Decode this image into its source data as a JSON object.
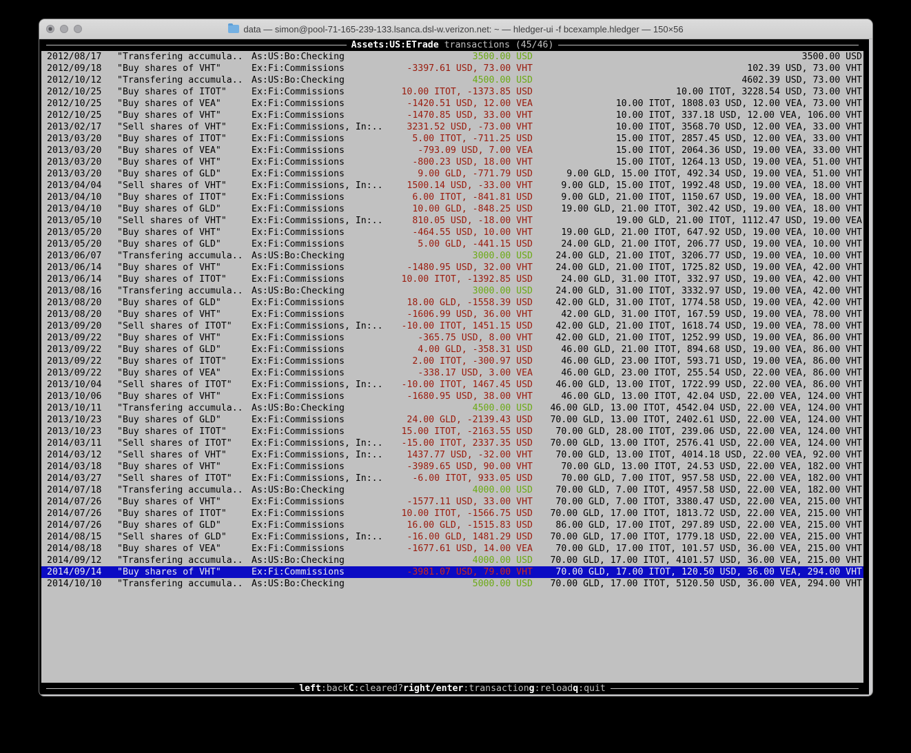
{
  "window": {
    "title": "data — simon@pool-71-165-239-133.lsanca.dsl-w.verizon.net: ~ — hledger-ui -f bcexample.hledger — 150×56"
  },
  "header": {
    "account": "Assets:US:ETrade",
    "mode_and_position": "transactions (45/46)"
  },
  "footer": {
    "hints": [
      {
        "key": "left",
        "desc": ":back"
      },
      {
        "key": "C",
        "desc": ":cleared?"
      },
      {
        "key": "right/enter",
        "desc": ":transaction"
      },
      {
        "key": "g",
        "desc": ":reload"
      },
      {
        "key": "q",
        "desc": ":quit"
      }
    ]
  },
  "colors": {
    "terminal_bg": "#c1c1c1",
    "bar_bg": "#000000",
    "inflow_green": "#6caa15",
    "outflow_red": "#9a1a0c",
    "selected_bg": "#0b0bc4",
    "selected_red": "#d02818"
  },
  "transactions": [
    {
      "date": "2012/08/17",
      "desc": "\"Transfering accumula..",
      "acct": "As:US:Bo:Checking",
      "change": "3500.00 USD",
      "change_type": "in",
      "bal": "3500.00 USD"
    },
    {
      "date": "2012/09/18",
      "desc": "\"Buy shares of VHT\"",
      "acct": "Ex:Fi:Commissions",
      "change": "-3397.61 USD, 73.00 VHT",
      "change_type": "out",
      "bal": "102.39 USD, 73.00 VHT"
    },
    {
      "date": "2012/10/12",
      "desc": "\"Transfering accumula..",
      "acct": "As:US:Bo:Checking",
      "change": "4500.00 USD",
      "change_type": "in",
      "bal": "4602.39 USD, 73.00 VHT"
    },
    {
      "date": "2012/10/25",
      "desc": "\"Buy shares of ITOT\"",
      "acct": "Ex:Fi:Commissions",
      "change": "10.00 ITOT, -1373.85 USD",
      "change_type": "out",
      "bal": "10.00 ITOT, 3228.54 USD, 73.00 VHT"
    },
    {
      "date": "2012/10/25",
      "desc": "\"Buy shares of VEA\"",
      "acct": "Ex:Fi:Commissions",
      "change": "-1420.51 USD, 12.00 VEA",
      "change_type": "out",
      "bal": "10.00 ITOT, 1808.03 USD, 12.00 VEA, 73.00 VHT"
    },
    {
      "date": "2012/10/25",
      "desc": "\"Buy shares of VHT\"",
      "acct": "Ex:Fi:Commissions",
      "change": "-1470.85 USD, 33.00 VHT",
      "change_type": "out",
      "bal": "10.00 ITOT, 337.18 USD, 12.00 VEA, 106.00 VHT"
    },
    {
      "date": "2013/02/17",
      "desc": "\"Sell shares of VHT\"",
      "acct": "Ex:Fi:Commissions, In:..",
      "change": "3231.52 USD, -73.00 VHT",
      "change_type": "out",
      "bal": "10.00 ITOT, 3568.70 USD, 12.00 VEA, 33.00 VHT"
    },
    {
      "date": "2013/03/20",
      "desc": "\"Buy shares of ITOT\"",
      "acct": "Ex:Fi:Commissions",
      "change": "5.00 ITOT, -711.25 USD",
      "change_type": "out",
      "bal": "15.00 ITOT, 2857.45 USD, 12.00 VEA, 33.00 VHT"
    },
    {
      "date": "2013/03/20",
      "desc": "\"Buy shares of VEA\"",
      "acct": "Ex:Fi:Commissions",
      "change": "-793.09 USD, 7.00 VEA",
      "change_type": "out",
      "bal": "15.00 ITOT, 2064.36 USD, 19.00 VEA, 33.00 VHT"
    },
    {
      "date": "2013/03/20",
      "desc": "\"Buy shares of VHT\"",
      "acct": "Ex:Fi:Commissions",
      "change": "-800.23 USD, 18.00 VHT",
      "change_type": "out",
      "bal": "15.00 ITOT, 1264.13 USD, 19.00 VEA, 51.00 VHT"
    },
    {
      "date": "2013/03/20",
      "desc": "\"Buy shares of GLD\"",
      "acct": "Ex:Fi:Commissions",
      "change": "9.00 GLD, -771.79 USD",
      "change_type": "out",
      "bal": "9.00 GLD, 15.00 ITOT, 492.34 USD, 19.00 VEA, 51.00 VHT"
    },
    {
      "date": "2013/04/04",
      "desc": "\"Sell shares of VHT\"",
      "acct": "Ex:Fi:Commissions, In:..",
      "change": "1500.14 USD, -33.00 VHT",
      "change_type": "out",
      "bal": "9.00 GLD, 15.00 ITOT, 1992.48 USD, 19.00 VEA, 18.00 VHT"
    },
    {
      "date": "2013/04/10",
      "desc": "\"Buy shares of ITOT\"",
      "acct": "Ex:Fi:Commissions",
      "change": "6.00 ITOT, -841.81 USD",
      "change_type": "out",
      "bal": "9.00 GLD, 21.00 ITOT, 1150.67 USD, 19.00 VEA, 18.00 VHT"
    },
    {
      "date": "2013/04/10",
      "desc": "\"Buy shares of GLD\"",
      "acct": "Ex:Fi:Commissions",
      "change": "10.00 GLD, -848.25 USD",
      "change_type": "out",
      "bal": "19.00 GLD, 21.00 ITOT, 302.42 USD, 19.00 VEA, 18.00 VHT"
    },
    {
      "date": "2013/05/10",
      "desc": "\"Sell shares of VHT\"",
      "acct": "Ex:Fi:Commissions, In:..",
      "change": "810.05 USD, -18.00 VHT",
      "change_type": "out",
      "bal": "19.00 GLD, 21.00 ITOT, 1112.47 USD, 19.00 VEA"
    },
    {
      "date": "2013/05/20",
      "desc": "\"Buy shares of VHT\"",
      "acct": "Ex:Fi:Commissions",
      "change": "-464.55 USD, 10.00 VHT",
      "change_type": "out",
      "bal": "19.00 GLD, 21.00 ITOT, 647.92 USD, 19.00 VEA, 10.00 VHT"
    },
    {
      "date": "2013/05/20",
      "desc": "\"Buy shares of GLD\"",
      "acct": "Ex:Fi:Commissions",
      "change": "5.00 GLD, -441.15 USD",
      "change_type": "out",
      "bal": "24.00 GLD, 21.00 ITOT, 206.77 USD, 19.00 VEA, 10.00 VHT"
    },
    {
      "date": "2013/06/07",
      "desc": "\"Transfering accumula..",
      "acct": "As:US:Bo:Checking",
      "change": "3000.00 USD",
      "change_type": "in",
      "bal": "24.00 GLD, 21.00 ITOT, 3206.77 USD, 19.00 VEA, 10.00 VHT"
    },
    {
      "date": "2013/06/14",
      "desc": "\"Buy shares of VHT\"",
      "acct": "Ex:Fi:Commissions",
      "change": "-1480.95 USD, 32.00 VHT",
      "change_type": "out",
      "bal": "24.00 GLD, 21.00 ITOT, 1725.82 USD, 19.00 VEA, 42.00 VHT"
    },
    {
      "date": "2013/06/14",
      "desc": "\"Buy shares of ITOT\"",
      "acct": "Ex:Fi:Commissions",
      "change": "10.00 ITOT, -1392.85 USD",
      "change_type": "out",
      "bal": "24.00 GLD, 31.00 ITOT, 332.97 USD, 19.00 VEA, 42.00 VHT"
    },
    {
      "date": "2013/08/16",
      "desc": "\"Transfering accumula..",
      "acct": "As:US:Bo:Checking",
      "change": "3000.00 USD",
      "change_type": "in",
      "bal": "24.00 GLD, 31.00 ITOT, 3332.97 USD, 19.00 VEA, 42.00 VHT"
    },
    {
      "date": "2013/08/20",
      "desc": "\"Buy shares of GLD\"",
      "acct": "Ex:Fi:Commissions",
      "change": "18.00 GLD, -1558.39 USD",
      "change_type": "out",
      "bal": "42.00 GLD, 31.00 ITOT, 1774.58 USD, 19.00 VEA, 42.00 VHT"
    },
    {
      "date": "2013/08/20",
      "desc": "\"Buy shares of VHT\"",
      "acct": "Ex:Fi:Commissions",
      "change": "-1606.99 USD, 36.00 VHT",
      "change_type": "out",
      "bal": "42.00 GLD, 31.00 ITOT, 167.59 USD, 19.00 VEA, 78.00 VHT"
    },
    {
      "date": "2013/09/20",
      "desc": "\"Sell shares of ITOT\"",
      "acct": "Ex:Fi:Commissions, In:..",
      "change": "-10.00 ITOT, 1451.15 USD",
      "change_type": "out",
      "bal": "42.00 GLD, 21.00 ITOT, 1618.74 USD, 19.00 VEA, 78.00 VHT"
    },
    {
      "date": "2013/09/22",
      "desc": "\"Buy shares of VHT\"",
      "acct": "Ex:Fi:Commissions",
      "change": "-365.75 USD, 8.00 VHT",
      "change_type": "out",
      "bal": "42.00 GLD, 21.00 ITOT, 1252.99 USD, 19.00 VEA, 86.00 VHT"
    },
    {
      "date": "2013/09/22",
      "desc": "\"Buy shares of GLD\"",
      "acct": "Ex:Fi:Commissions",
      "change": "4.00 GLD, -358.31 USD",
      "change_type": "out",
      "bal": "46.00 GLD, 21.00 ITOT, 894.68 USD, 19.00 VEA, 86.00 VHT"
    },
    {
      "date": "2013/09/22",
      "desc": "\"Buy shares of ITOT\"",
      "acct": "Ex:Fi:Commissions",
      "change": "2.00 ITOT, -300.97 USD",
      "change_type": "out",
      "bal": "46.00 GLD, 23.00 ITOT, 593.71 USD, 19.00 VEA, 86.00 VHT"
    },
    {
      "date": "2013/09/22",
      "desc": "\"Buy shares of VEA\"",
      "acct": "Ex:Fi:Commissions",
      "change": "-338.17 USD, 3.00 VEA",
      "change_type": "out",
      "bal": "46.00 GLD, 23.00 ITOT, 255.54 USD, 22.00 VEA, 86.00 VHT"
    },
    {
      "date": "2013/10/04",
      "desc": "\"Sell shares of ITOT\"",
      "acct": "Ex:Fi:Commissions, In:..",
      "change": "-10.00 ITOT, 1467.45 USD",
      "change_type": "out",
      "bal": "46.00 GLD, 13.00 ITOT, 1722.99 USD, 22.00 VEA, 86.00 VHT"
    },
    {
      "date": "2013/10/06",
      "desc": "\"Buy shares of VHT\"",
      "acct": "Ex:Fi:Commissions",
      "change": "-1680.95 USD, 38.00 VHT",
      "change_type": "out",
      "bal": "46.00 GLD, 13.00 ITOT, 42.04 USD, 22.00 VEA, 124.00 VHT"
    },
    {
      "date": "2013/10/11",
      "desc": "\"Transfering accumula..",
      "acct": "As:US:Bo:Checking",
      "change": "4500.00 USD",
      "change_type": "in",
      "bal": "46.00 GLD, 13.00 ITOT, 4542.04 USD, 22.00 VEA, 124.00 VHT"
    },
    {
      "date": "2013/10/23",
      "desc": "\"Buy shares of GLD\"",
      "acct": "Ex:Fi:Commissions",
      "change": "24.00 GLD, -2139.43 USD",
      "change_type": "out",
      "bal": "70.00 GLD, 13.00 ITOT, 2402.61 USD, 22.00 VEA, 124.00 VHT"
    },
    {
      "date": "2013/10/23",
      "desc": "\"Buy shares of ITOT\"",
      "acct": "Ex:Fi:Commissions",
      "change": "15.00 ITOT, -2163.55 USD",
      "change_type": "out",
      "bal": "70.00 GLD, 28.00 ITOT, 239.06 USD, 22.00 VEA, 124.00 VHT"
    },
    {
      "date": "2014/03/11",
      "desc": "\"Sell shares of ITOT\"",
      "acct": "Ex:Fi:Commissions, In:..",
      "change": "-15.00 ITOT, 2337.35 USD",
      "change_type": "out",
      "bal": "70.00 GLD, 13.00 ITOT, 2576.41 USD, 22.00 VEA, 124.00 VHT"
    },
    {
      "date": "2014/03/12",
      "desc": "\"Sell shares of VHT\"",
      "acct": "Ex:Fi:Commissions, In:..",
      "change": "1437.77 USD, -32.00 VHT",
      "change_type": "out",
      "bal": "70.00 GLD, 13.00 ITOT, 4014.18 USD, 22.00 VEA, 92.00 VHT"
    },
    {
      "date": "2014/03/18",
      "desc": "\"Buy shares of VHT\"",
      "acct": "Ex:Fi:Commissions",
      "change": "-3989.65 USD, 90.00 VHT",
      "change_type": "out",
      "bal": "70.00 GLD, 13.00 ITOT, 24.53 USD, 22.00 VEA, 182.00 VHT"
    },
    {
      "date": "2014/03/27",
      "desc": "\"Sell shares of ITOT\"",
      "acct": "Ex:Fi:Commissions, In:..",
      "change": "-6.00 ITOT, 933.05 USD",
      "change_type": "out",
      "bal": "70.00 GLD, 7.00 ITOT, 957.58 USD, 22.00 VEA, 182.00 VHT"
    },
    {
      "date": "2014/07/18",
      "desc": "\"Transfering accumula..",
      "acct": "As:US:Bo:Checking",
      "change": "4000.00 USD",
      "change_type": "in",
      "bal": "70.00 GLD, 7.00 ITOT, 4957.58 USD, 22.00 VEA, 182.00 VHT"
    },
    {
      "date": "2014/07/26",
      "desc": "\"Buy shares of VHT\"",
      "acct": "Ex:Fi:Commissions",
      "change": "-1577.11 USD, 33.00 VHT",
      "change_type": "out",
      "bal": "70.00 GLD, 7.00 ITOT, 3380.47 USD, 22.00 VEA, 215.00 VHT"
    },
    {
      "date": "2014/07/26",
      "desc": "\"Buy shares of ITOT\"",
      "acct": "Ex:Fi:Commissions",
      "change": "10.00 ITOT, -1566.75 USD",
      "change_type": "out",
      "bal": "70.00 GLD, 17.00 ITOT, 1813.72 USD, 22.00 VEA, 215.00 VHT"
    },
    {
      "date": "2014/07/26",
      "desc": "\"Buy shares of GLD\"",
      "acct": "Ex:Fi:Commissions",
      "change": "16.00 GLD, -1515.83 USD",
      "change_type": "out",
      "bal": "86.00 GLD, 17.00 ITOT, 297.89 USD, 22.00 VEA, 215.00 VHT"
    },
    {
      "date": "2014/08/15",
      "desc": "\"Sell shares of GLD\"",
      "acct": "Ex:Fi:Commissions, In:..",
      "change": "-16.00 GLD, 1481.29 USD",
      "change_type": "out",
      "bal": "70.00 GLD, 17.00 ITOT, 1779.18 USD, 22.00 VEA, 215.00 VHT"
    },
    {
      "date": "2014/08/18",
      "desc": "\"Buy shares of VEA\"",
      "acct": "Ex:Fi:Commissions",
      "change": "-1677.61 USD, 14.00 VEA",
      "change_type": "out",
      "bal": "70.00 GLD, 17.00 ITOT, 101.57 USD, 36.00 VEA, 215.00 VHT"
    },
    {
      "date": "2014/09/12",
      "desc": "\"Transfering accumula..",
      "acct": "As:US:Bo:Checking",
      "change": "4000.00 USD",
      "change_type": "in",
      "bal": "70.00 GLD, 17.00 ITOT, 4101.57 USD, 36.00 VEA, 215.00 VHT"
    },
    {
      "date": "2014/09/14",
      "desc": "\"Buy shares of VHT\"",
      "acct": "Ex:Fi:Commissions",
      "change": "-3981.07 USD, 79.00 VHT",
      "change_type": "out",
      "bal": "70.00 GLD, 17.00 ITOT, 120.50 USD, 36.00 VEA, 294.00 VHT",
      "selected": true
    },
    {
      "date": "2014/10/10",
      "desc": "\"Transfering accumula..",
      "acct": "As:US:Bo:Checking",
      "change": "5000.00 USD",
      "change_type": "in",
      "bal": "70.00 GLD, 17.00 ITOT, 5120.50 USD, 36.00 VEA, 294.00 VHT"
    }
  ]
}
